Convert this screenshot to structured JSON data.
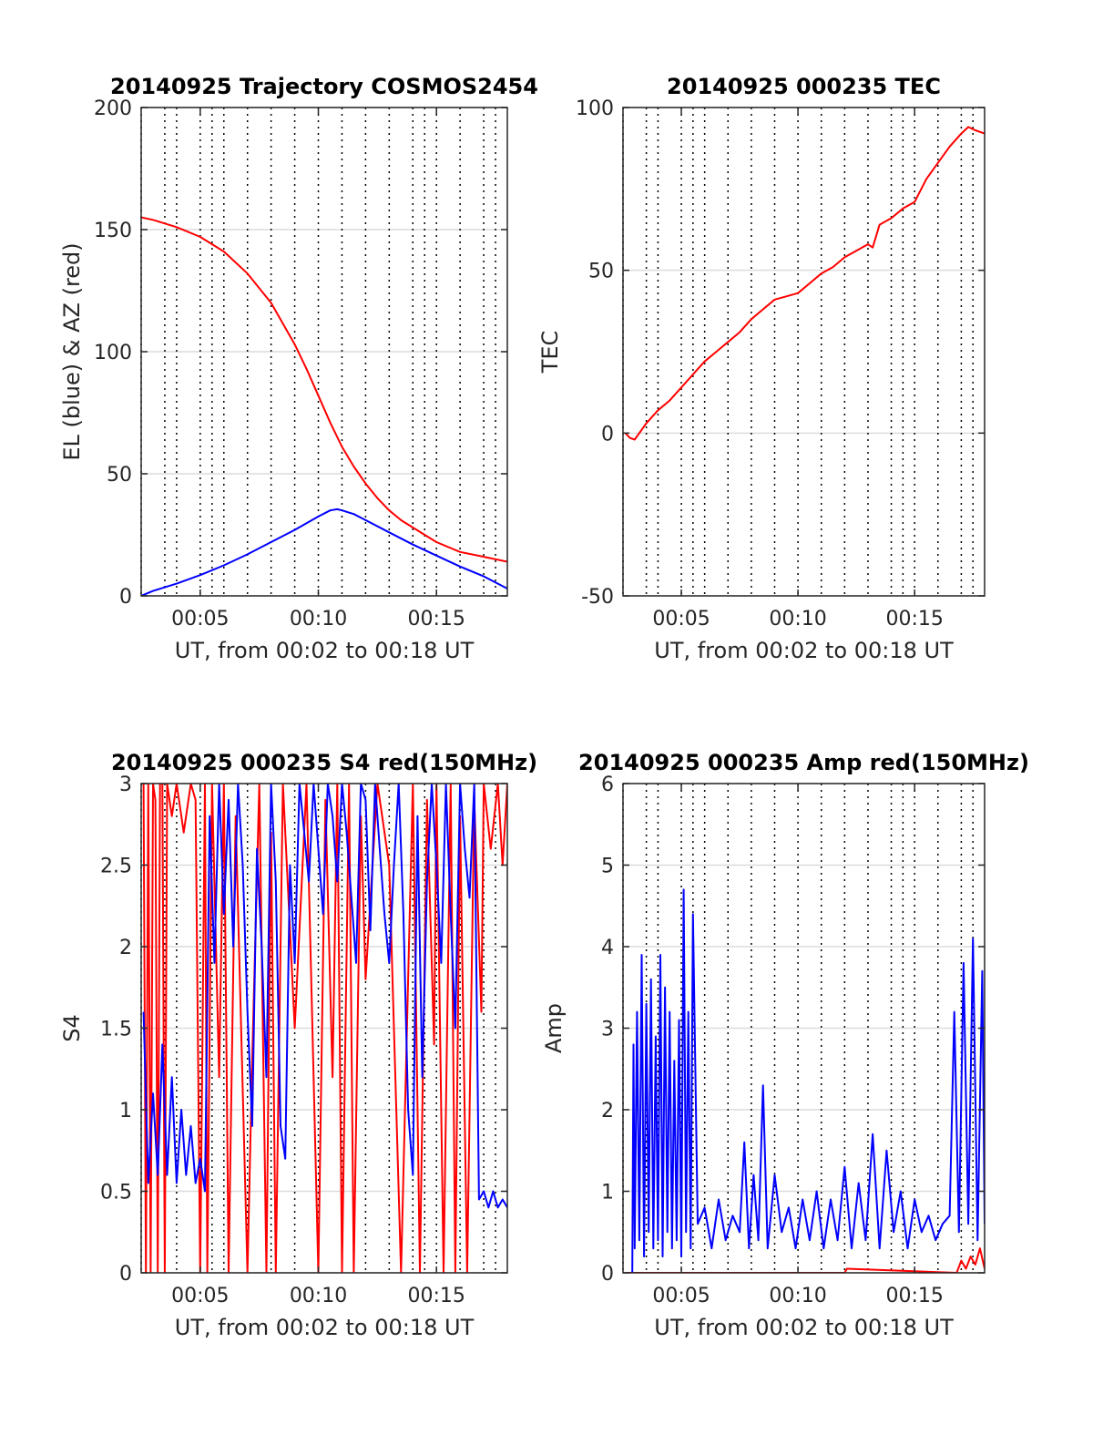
{
  "colors": {
    "red": "#ff0000",
    "blue": "#0000ff"
  },
  "chart_data": [
    {
      "type": "line",
      "title": "20140925 Trajectory COSMOS2454",
      "xlabel": "UT, from 00:02 to 00:18 UT",
      "ylabel": "EL (blue) & AZ (red)",
      "xlim": [
        2.5,
        18.0
      ],
      "ylim": [
        0,
        200
      ],
      "xticks": [
        5,
        10,
        15
      ],
      "xticklabels": [
        "00:05",
        "00:10",
        "00:15"
      ],
      "yticks": [
        0,
        50,
        100,
        150,
        200
      ],
      "yticklabels": [
        "0",
        "50",
        "100",
        "150",
        "200"
      ],
      "vgrid": [
        2.5,
        3.5,
        4,
        5,
        5.5,
        6,
        7,
        8,
        9,
        10,
        11,
        12,
        13,
        14,
        14.5,
        15,
        16,
        17,
        17.5
      ],
      "series": [
        {
          "color": "red",
          "x": [
            2.5,
            3,
            4,
            5,
            6,
            7,
            8,
            9,
            9.5,
            10,
            10.5,
            11,
            11.5,
            12,
            12.5,
            13,
            13.5,
            14,
            15,
            16,
            17,
            18
          ],
          "y": [
            155,
            154,
            151,
            147,
            141,
            132,
            120,
            103,
            93,
            82,
            71,
            61,
            53,
            46,
            40,
            35,
            31,
            28,
            22,
            18,
            16,
            14
          ]
        },
        {
          "color": "blue",
          "x": [
            2.5,
            3,
            4,
            5,
            6,
            7,
            8,
            9,
            10,
            10.5,
            10.8,
            11,
            11.5,
            12,
            13,
            14,
            15,
            16,
            17,
            18
          ],
          "y": [
            0,
            2,
            5,
            8.5,
            12.5,
            17,
            22,
            27,
            32.5,
            35,
            35.5,
            35,
            33.5,
            31,
            26,
            21,
            16.5,
            12,
            8,
            3
          ]
        }
      ]
    },
    {
      "type": "line",
      "title": "20140925 000235 TEC",
      "xlabel": "UT, from 00:02 to 00:18 UT",
      "ylabel": "TEC",
      "xlim": [
        2.5,
        18.0
      ],
      "ylim": [
        -50,
        100
      ],
      "xticks": [
        5,
        10,
        15
      ],
      "xticklabels": [
        "00:05",
        "00:10",
        "00:15"
      ],
      "yticks": [
        -50,
        0,
        50,
        100
      ],
      "yticklabels": [
        "-50",
        "0",
        "50",
        "100"
      ],
      "vgrid": [
        2.5,
        3.5,
        4,
        5,
        5.5,
        6,
        7,
        8,
        9,
        10,
        11,
        12,
        13,
        14,
        14.5,
        15,
        16,
        17,
        17.5
      ],
      "series": [
        {
          "color": "red",
          "x": [
            2.6,
            2.8,
            3.0,
            3.5,
            4.0,
            4.5,
            5.0,
            5.5,
            6.0,
            6.5,
            7.0,
            7.5,
            8.0,
            8.5,
            9.0,
            9.5,
            10.0,
            10.5,
            11.0,
            11.5,
            12.0,
            12.5,
            13.0,
            13.2,
            13.5,
            14.0,
            14.5,
            15.0,
            15.5,
            16.0,
            16.5,
            17.0,
            17.3,
            17.6,
            18.0
          ],
          "y": [
            0,
            -1.5,
            -2,
            3,
            7,
            10,
            14,
            18,
            22,
            25,
            28,
            31,
            35,
            38,
            41,
            42,
            43,
            46,
            49,
            51,
            54,
            56,
            58,
            57,
            64,
            66,
            69,
            71,
            78,
            83,
            88,
            92,
            94,
            93,
            92
          ]
        }
      ]
    },
    {
      "type": "line",
      "title": "20140925 000235 S4 red(150MHz)",
      "xlabel": "UT, from 00:02 to 00:18 UT",
      "ylabel": "S4",
      "xlim": [
        2.5,
        18.0
      ],
      "ylim": [
        0,
        3
      ],
      "xticks": [
        5,
        10,
        15
      ],
      "xticklabels": [
        "00:05",
        "00:10",
        "00:15"
      ],
      "yticks": [
        0,
        0.5,
        1,
        1.5,
        2,
        2.5,
        3
      ],
      "yticklabels": [
        "0",
        "0.5",
        "1",
        "1.5",
        "2",
        "2.5",
        "3"
      ],
      "vgrid": [
        2.5,
        3.5,
        4,
        5,
        5.5,
        6,
        7,
        8,
        9,
        10,
        11,
        12,
        13,
        14,
        14.5,
        15,
        16,
        17,
        17.5
      ],
      "series": [
        {
          "color": "red",
          "x": [
            2.6,
            2.7,
            2.8,
            2.9,
            3.0,
            3.1,
            3.2,
            3.3,
            3.4,
            3.5,
            3.6,
            3.8,
            4.0,
            4.3,
            4.6,
            4.8,
            5.0,
            5.2,
            5.3,
            5.5,
            5.8,
            6.0,
            6.2,
            6.5,
            7.0,
            7.2,
            7.5,
            7.8,
            8.0,
            8.2,
            8.5,
            9.0,
            9.5,
            10.0,
            10.3,
            10.6,
            10.8,
            11.0,
            11.3,
            11.5,
            11.8,
            12.0,
            12.5,
            13.0,
            13.5,
            14.0,
            14.3,
            14.6,
            14.9,
            15.0,
            15.3,
            15.6,
            15.8,
            16.0,
            16.3,
            16.6,
            16.9,
            17.0,
            17.3,
            17.6,
            17.8,
            18.0
          ],
          "y": [
            3,
            0,
            3,
            0,
            3,
            2.9,
            0,
            3,
            3,
            0,
            3,
            2.8,
            3,
            2.7,
            3,
            2.9,
            0,
            3,
            0,
            3,
            1.2,
            3,
            0,
            2.8,
            0,
            1.3,
            3,
            0,
            2.7,
            0,
            3,
            1.5,
            3,
            0,
            2.9,
            1.2,
            3,
            0,
            3,
            0,
            2.8,
            1.8,
            3,
            2.5,
            0,
            3,
            0,
            2.9,
            1.4,
            3,
            0,
            3,
            0,
            2.8,
            0,
            2.9,
            1.6,
            3,
            2.6,
            3,
            2.5,
            3
          ]
        },
        {
          "color": "blue",
          "x": [
            2.6,
            2.8,
            3.0,
            3.2,
            3.4,
            3.6,
            3.8,
            4.0,
            4.2,
            4.4,
            4.6,
            4.8,
            5.0,
            5.2,
            5.4,
            5.6,
            5.8,
            6.0,
            6.2,
            6.4,
            6.6,
            6.8,
            7.0,
            7.2,
            7.4,
            7.6,
            7.8,
            8.0,
            8.2,
            8.4,
            8.6,
            8.8,
            9.0,
            9.2,
            9.4,
            9.6,
            9.8,
            10.0,
            10.2,
            10.4,
            10.6,
            10.8,
            11.0,
            11.2,
            11.4,
            11.6,
            11.8,
            12.0,
            12.2,
            12.4,
            12.6,
            12.8,
            13.0,
            13.2,
            13.4,
            13.6,
            13.8,
            14.0,
            14.2,
            14.4,
            14.6,
            14.8,
            15.0,
            15.2,
            15.4,
            15.6,
            15.8,
            16.0,
            16.2,
            16.4,
            16.6,
            16.8,
            17.0,
            17.2,
            17.4,
            17.6,
            17.8,
            18.0
          ],
          "y": [
            1.6,
            0.55,
            1.1,
            0.6,
            1.4,
            0.6,
            1.2,
            0.55,
            1.0,
            0.6,
            0.9,
            0.55,
            0.7,
            0.5,
            2.8,
            1.9,
            3,
            2.2,
            2.9,
            2.0,
            3,
            2.5,
            1.6,
            0.9,
            2.6,
            2.0,
            1.2,
            3,
            2.4,
            0.9,
            0.7,
            2.5,
            1.9,
            3,
            2.7,
            2.4,
            3,
            2.6,
            2.2,
            3,
            2.8,
            2.4,
            3,
            2.7,
            2.3,
            1.9,
            3,
            2.9,
            2.1,
            3,
            2.6,
            2.2,
            1.9,
            2.5,
            3,
            2.2,
            1.0,
            0.6,
            2.8,
            1.2,
            2.4,
            3,
            2.5,
            1.9,
            3,
            2.2,
            1.5,
            3,
            2.6,
            2.3,
            3,
            0.45,
            0.5,
            0.4,
            0.5,
            0.4,
            0.45,
            0.4
          ]
        }
      ]
    },
    {
      "type": "line",
      "title": "20140925 000235 Amp red(150MHz)",
      "xlabel": "UT, from 00:02 to 00:18 UT",
      "ylabel": "Amp",
      "xlim": [
        2.5,
        18.0
      ],
      "ylim": [
        0,
        6
      ],
      "xticks": [
        5,
        10,
        15
      ],
      "xticklabels": [
        "00:05",
        "00:10",
        "00:15"
      ],
      "yticks": [
        0,
        1,
        2,
        3,
        4,
        5,
        6
      ],
      "yticklabels": [
        "0",
        "1",
        "2",
        "3",
        "4",
        "5",
        "6"
      ],
      "vgrid": [
        2.5,
        3.5,
        4,
        5,
        5.5,
        6,
        7,
        8,
        9,
        10,
        11,
        12,
        13,
        14,
        14.5,
        15,
        16,
        17,
        17.5
      ],
      "series": [
        {
          "color": "red",
          "x": [
            2.6,
            12.0,
            12.1,
            16.8,
            17.0,
            17.2,
            17.4,
            17.6,
            17.8,
            18.0
          ],
          "y": [
            0,
            0,
            0.05,
            0,
            0.15,
            0.05,
            0.2,
            0.1,
            0.3,
            0.05
          ]
        },
        {
          "color": "blue",
          "x": [
            2.9,
            2.95,
            3.0,
            3.1,
            3.2,
            3.3,
            3.4,
            3.5,
            3.6,
            3.7,
            3.8,
            3.9,
            4.0,
            4.1,
            4.2,
            4.3,
            4.4,
            4.5,
            4.6,
            4.7,
            4.8,
            4.9,
            5.0,
            5.1,
            5.2,
            5.3,
            5.4,
            5.5,
            5.7,
            6.0,
            6.3,
            6.6,
            6.9,
            7.2,
            7.5,
            7.7,
            7.9,
            8.1,
            8.3,
            8.5,
            8.7,
            9.0,
            9.3,
            9.6,
            9.9,
            10.2,
            10.5,
            10.8,
            11.1,
            11.4,
            11.7,
            12.0,
            12.3,
            12.6,
            12.9,
            13.2,
            13.5,
            13.8,
            14.1,
            14.4,
            14.7,
            15.0,
            15.3,
            15.6,
            15.9,
            16.2,
            16.5,
            16.7,
            16.9,
            17.1,
            17.3,
            17.5,
            17.7,
            17.9,
            18.0
          ],
          "y": [
            0,
            2.8,
            0.3,
            3.2,
            0.4,
            3.9,
            0.2,
            3.3,
            0.5,
            3.6,
            0.3,
            2.9,
            0.4,
            3.9,
            0.2,
            3.5,
            0.5,
            3.2,
            0.3,
            2.6,
            0.4,
            3.1,
            0.2,
            4.7,
            0.5,
            3.2,
            0.3,
            4.4,
            0.6,
            0.8,
            0.3,
            0.9,
            0.4,
            0.7,
            0.5,
            1.6,
            0.3,
            1.2,
            0.4,
            2.3,
            0.3,
            1.2,
            0.5,
            0.8,
            0.3,
            0.9,
            0.4,
            1.0,
            0.3,
            0.9,
            0.4,
            1.3,
            0.3,
            1.1,
            0.4,
            1.7,
            0.3,
            1.5,
            0.5,
            1.0,
            0.3,
            0.9,
            0.5,
            0.7,
            0.4,
            0.6,
            0.7,
            3.2,
            0.5,
            3.8,
            0.6,
            4.1,
            0.4,
            3.7,
            0.6
          ]
        }
      ]
    }
  ]
}
